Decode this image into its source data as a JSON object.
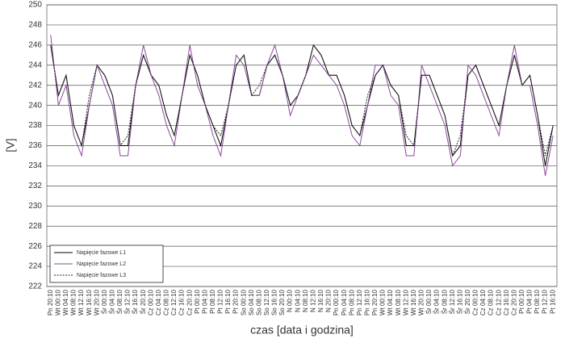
{
  "chart_data": {
    "type": "line",
    "y_label": "[V]",
    "x_label": "czas [data i godzina]",
    "categories": [
      "Pn 20:10",
      "Wt 00:10",
      "Wt 04:10",
      "Wt 08:10",
      "Wt 12:10",
      "Wt 16:10",
      "Wt 20:10",
      "Śr 00:10",
      "Śr 04:10",
      "Śr 08:10",
      "Śr 12:10",
      "Śr 16:10",
      "Śr 20:10",
      "Cz 00:10",
      "Cz 04:10",
      "Cz 08:10",
      "Cz 12:10",
      "Cz 16:10",
      "Cz 20:10",
      "Pt 00:10",
      "Pt 04:10",
      "Pt 08:10",
      "Pt 12:10",
      "Pt 16:10",
      "Pt 20:10",
      "So 00:10",
      "So 04:10",
      "So 08:10",
      "So 12:10",
      "So 16:10",
      "So 20:10",
      "N 00:10",
      "N 04:10",
      "N 08:10",
      "N 12:10",
      "N 16:10",
      "N 20:10",
      "Pn 00:10",
      "Pn 04:10",
      "Pn 08:10",
      "Pn 12:10",
      "Pn 16:10",
      "Pn 20:10",
      "Wt 00:10",
      "Wt 04:10",
      "Wt 08:10",
      "Wt 12:10",
      "Wt 16:10",
      "Wt 20:10",
      "Śr 00:10",
      "Śr 04:10",
      "Śr 08:10",
      "Śr 12:10",
      "Śr 16:10",
      "Śr 20:10",
      "Cz 00:10",
      "Cz 04:10",
      "Cz 08:10",
      "Cz 12:10",
      "Cz 16:10",
      "Cz 20:10",
      "Pt 00:10",
      "Pt 04:10",
      "Pt 08:10",
      "Pt 12:10",
      "Pt 16:10"
    ],
    "series": [
      {
        "name": "Napięcie fazowe L1",
        "color": "#000000",
        "line_style": "solid",
        "values": [
          246,
          241,
          243,
          238,
          236,
          240,
          244,
          243,
          241,
          236,
          236,
          242,
          245,
          243,
          242,
          239,
          237,
          241,
          245,
          243,
          240,
          238,
          236,
          240,
          244,
          245,
          241,
          241,
          244,
          245,
          243,
          240,
          241,
          243,
          246,
          245,
          243,
          243,
          241,
          238,
          237,
          240,
          243,
          244,
          242,
          241,
          236,
          236,
          243,
          243,
          241,
          239,
          235,
          236,
          243,
          244,
          242,
          240,
          238,
          242,
          245,
          242,
          243,
          239,
          234,
          238
        ]
      },
      {
        "name": "Napięcie fazowe L2",
        "color": "#8a4a9a",
        "line_style": "solid",
        "values": [
          247,
          240,
          242,
          237,
          235,
          240,
          244,
          242,
          240,
          235,
          235,
          242,
          246,
          243,
          241,
          238,
          236,
          241,
          246,
          242,
          240,
          237,
          235,
          240,
          245,
          244,
          241,
          241,
          244,
          246,
          243,
          239,
          241,
          243,
          245,
          244,
          243,
          242,
          240,
          237,
          236,
          240,
          244,
          244,
          241,
          240,
          235,
          235,
          244,
          242,
          240,
          238,
          234,
          235,
          244,
          243,
          241,
          239,
          237,
          242,
          246,
          242,
          242,
          238,
          233,
          237
        ]
      },
      {
        "name": "Napięcie fazowe L3",
        "color": "#222222",
        "line_style": "dashed",
        "values": [
          246,
          241,
          243,
          238,
          236,
          241,
          244,
          243,
          241,
          236,
          237,
          242,
          245,
          243,
          242,
          239,
          237,
          241,
          245,
          243,
          240,
          238,
          237,
          240,
          244,
          245,
          241,
          242,
          244,
          245,
          243,
          240,
          241,
          243,
          246,
          245,
          243,
          243,
          241,
          238,
          237,
          241,
          243,
          244,
          242,
          241,
          237,
          236,
          243,
          243,
          241,
          239,
          235,
          237,
          243,
          244,
          242,
          240,
          238,
          242,
          245,
          242,
          243,
          239,
          235,
          238
        ]
      }
    ],
    "ylim": [
      222,
      250
    ],
    "yticks": [
      222,
      224,
      226,
      228,
      230,
      232,
      234,
      236,
      238,
      240,
      242,
      244,
      246,
      248,
      250
    ],
    "grid": true,
    "legend": "lower left"
  }
}
